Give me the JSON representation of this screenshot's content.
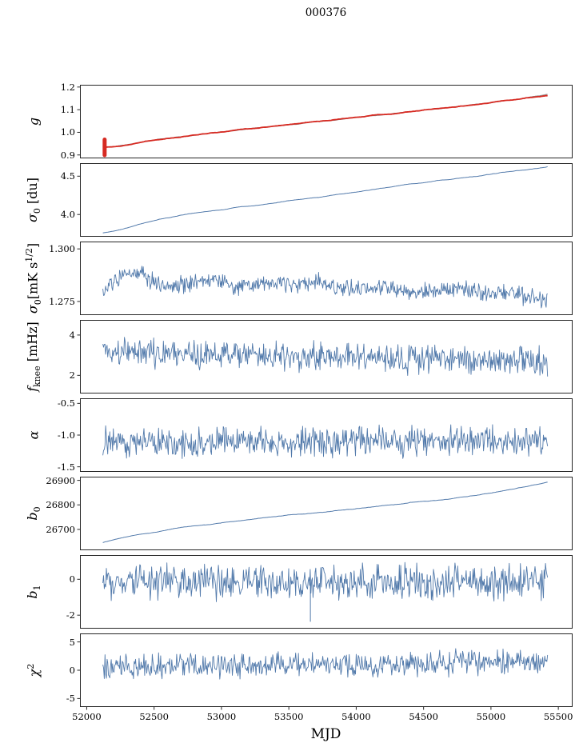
{
  "chart_data": {
    "type": "line",
    "title": "000376",
    "xlabel": "MJD",
    "xlim": [
      51950,
      55600
    ],
    "x_data_range": [
      52120,
      55420
    ],
    "frame_color": "#262626",
    "line_color_primary": "#527aab",
    "line_color_gain": "#d62a22",
    "line_color_reference": "#8c8c8c",
    "legend": "none",
    "grid": false,
    "x_ticks": [
      {
        "v": 52000,
        "label": "52000"
      },
      {
        "v": 52500,
        "label": "52500"
      },
      {
        "v": 53000,
        "label": "53000"
      },
      {
        "v": 53500,
        "label": "53500"
      },
      {
        "v": 54000,
        "label": "54000"
      },
      {
        "v": 54500,
        "label": "54500"
      },
      {
        "v": 55000,
        "label": "55000"
      },
      {
        "v": 55500,
        "label": "55500"
      }
    ],
    "panels": [
      {
        "id": "g",
        "ylabel": [
          {
            "t": "g",
            "italic": true
          }
        ],
        "ylim": [
          0.885,
          1.21
        ],
        "yticks": [
          {
            "v": 0.9,
            "label": "0.9"
          },
          {
            "v": 1.0,
            "label": "1.0"
          },
          {
            "v": 1.1,
            "label": "1.1"
          },
          {
            "v": 1.2,
            "label": "1.2"
          }
        ],
        "series": [
          {
            "name": "g-reference",
            "color": "#8c8c8c",
            "width": 1.1,
            "n": 420,
            "seed": 11,
            "noise": 0.0025,
            "smooth": 6,
            "trend": [
              [
                52120,
                0.933
              ],
              [
                52200,
                0.937
              ],
              [
                52300,
                0.946
              ],
              [
                52400,
                0.956
              ],
              [
                52500,
                0.966
              ],
              [
                52600,
                0.974
              ],
              [
                52700,
                0.981
              ],
              [
                52800,
                0.988
              ],
              [
                52900,
                0.995
              ],
              [
                53000,
                1.002
              ],
              [
                53150,
                1.012
              ],
              [
                53300,
                1.022
              ],
              [
                53450,
                1.031
              ],
              [
                53600,
                1.041
              ],
              [
                53800,
                1.053
              ],
              [
                54000,
                1.066
              ],
              [
                54200,
                1.079
              ],
              [
                54400,
                1.092
              ],
              [
                54600,
                1.104
              ],
              [
                54800,
                1.117
              ],
              [
                55000,
                1.131
              ],
              [
                55150,
                1.143
              ],
              [
                55300,
                1.157
              ],
              [
                55420,
                1.168
              ]
            ]
          },
          {
            "name": "g-gain",
            "color": "#d62a22",
            "width": 1.8,
            "n": 420,
            "seed": 12,
            "noise": 0.0025,
            "smooth": 6,
            "trend": [
              [
                52120,
                0.933
              ],
              [
                52200,
                0.937
              ],
              [
                52300,
                0.946
              ],
              [
                52400,
                0.956
              ],
              [
                52500,
                0.966
              ],
              [
                52600,
                0.974
              ],
              [
                52700,
                0.981
              ],
              [
                52800,
                0.988
              ],
              [
                52900,
                0.995
              ],
              [
                53000,
                1.002
              ],
              [
                53150,
                1.012
              ],
              [
                53300,
                1.022
              ],
              [
                53450,
                1.031
              ],
              [
                53600,
                1.041
              ],
              [
                53800,
                1.053
              ],
              [
                54000,
                1.066
              ],
              [
                54200,
                1.079
              ],
              [
                54400,
                1.092
              ],
              [
                54600,
                1.104
              ],
              [
                54800,
                1.117
              ],
              [
                55000,
                1.131
              ],
              [
                55150,
                1.143
              ],
              [
                55300,
                1.154
              ],
              [
                55420,
                1.162
              ]
            ]
          }
        ],
        "marks": [
          {
            "type": "vline",
            "x": 52133,
            "y0": 0.899,
            "y1": 0.968,
            "color": "#d62a22",
            "width": 5
          }
        ]
      },
      {
        "id": "sigma0-du",
        "ylabel": [
          {
            "t": "σ",
            "italic": true
          },
          {
            "t": "0",
            "sub": true
          },
          {
            "t": " [du]"
          }
        ],
        "ylim": [
          3.71,
          4.67
        ],
        "yticks": [
          {
            "v": 4.5,
            "label": "4.5"
          },
          {
            "v": 4.0,
            "label": "4.0"
          }
        ],
        "series": [
          {
            "name": "sigma0-du",
            "color": "#527aab",
            "width": 1,
            "n": 440,
            "seed": 21,
            "noise": 0.006,
            "smooth": 5,
            "trend": [
              [
                52120,
                3.76
              ],
              [
                52250,
                3.8
              ],
              [
                52400,
                3.88
              ],
              [
                52550,
                3.94
              ],
              [
                52700,
                3.99
              ],
              [
                52900,
                4.04
              ],
              [
                53100,
                4.09
              ],
              [
                53300,
                4.13
              ],
              [
                53500,
                4.18
              ],
              [
                53700,
                4.22
              ],
              [
                53900,
                4.27
              ],
              [
                54100,
                4.32
              ],
              [
                54300,
                4.37
              ],
              [
                54500,
                4.42
              ],
              [
                54700,
                4.46
              ],
              [
                54900,
                4.5
              ],
              [
                55100,
                4.55
              ],
              [
                55250,
                4.58
              ],
              [
                55420,
                4.62
              ]
            ]
          }
        ],
        "marks": []
      },
      {
        "id": "sigma0-mk",
        "ylabel": [
          {
            "t": "σ",
            "italic": true
          },
          {
            "t": "0",
            "sub": true
          },
          {
            "t": "[mK s"
          },
          {
            "t": "1/2",
            "sup": true
          },
          {
            "t": "]"
          }
        ],
        "ylim": [
          1.2685,
          1.3035
        ],
        "yticks": [
          {
            "v": 1.3,
            "label": "1.300"
          },
          {
            "v": 1.275,
            "label": "1.275"
          }
        ],
        "series": [
          {
            "name": "sigma0-mk",
            "color": "#527aab",
            "width": 0.9,
            "n": 640,
            "seed": 31,
            "noise": 0.005,
            "smooth": 0,
            "trend": [
              [
                52120,
                1.2785
              ],
              [
                52200,
                1.284
              ],
              [
                52300,
                1.2875
              ],
              [
                52400,
                1.2895
              ],
              [
                52500,
                1.284
              ],
              [
                52650,
                1.2825
              ],
              [
                52800,
                1.2845
              ],
              [
                52950,
                1.286
              ],
              [
                53100,
                1.282
              ],
              [
                53250,
                1.2835
              ],
              [
                53400,
                1.284
              ],
              [
                53550,
                1.2825
              ],
              [
                53700,
                1.2845
              ],
              [
                53850,
                1.281
              ],
              [
                54000,
                1.2805
              ],
              [
                54200,
                1.2815
              ],
              [
                54400,
                1.279
              ],
              [
                54600,
                1.2805
              ],
              [
                54800,
                1.281
              ],
              [
                55000,
                1.2785
              ],
              [
                55150,
                1.2795
              ],
              [
                55300,
                1.2765
              ],
              [
                55420,
                1.2755
              ]
            ]
          }
        ],
        "marks": []
      },
      {
        "id": "fknee",
        "ylabel": [
          {
            "t": "f",
            "italic": true
          },
          {
            "t": "knee",
            "sub": true
          },
          {
            "t": " [mHz]"
          }
        ],
        "ylim": [
          1.1,
          4.75
        ],
        "yticks": [
          {
            "v": 4,
            "label": "4"
          },
          {
            "v": 2,
            "label": "2"
          }
        ],
        "series": [
          {
            "name": "fknee",
            "color": "#527aab",
            "width": 0.9,
            "n": 640,
            "seed": 41,
            "noise": 0.85,
            "smooth": 0,
            "trend": [
              [
                52120,
                3.25
              ],
              [
                52400,
                3.15
              ],
              [
                52700,
                3.05
              ],
              [
                53000,
                3.0
              ],
              [
                53400,
                2.95
              ],
              [
                53800,
                2.9
              ],
              [
                54200,
                2.85
              ],
              [
                54600,
                2.8
              ],
              [
                55000,
                2.75
              ],
              [
                55420,
                2.7
              ]
            ]
          }
        ],
        "marks": []
      },
      {
        "id": "alpha",
        "ylabel": [
          {
            "t": "α",
            "italic": true
          }
        ],
        "ylim": [
          -1.58,
          -0.42
        ],
        "yticks": [
          {
            "v": -0.5,
            "label": "-0.5"
          },
          {
            "v": -1.0,
            "label": "-1.0"
          },
          {
            "v": -1.5,
            "label": "-1.5"
          }
        ],
        "series": [
          {
            "name": "alpha",
            "color": "#527aab",
            "width": 0.9,
            "n": 640,
            "seed": 51,
            "noise": 0.28,
            "smooth": 0,
            "trend": [
              [
                52120,
                -1.1
              ],
              [
                53000,
                -1.11
              ],
              [
                54000,
                -1.1
              ],
              [
                55420,
                -1.09
              ]
            ]
          }
        ],
        "marks": []
      },
      {
        "id": "b0",
        "ylabel": [
          {
            "t": "b",
            "italic": true
          },
          {
            "t": "0",
            "sub": true
          }
        ],
        "ylim": [
          26615,
          26915
        ],
        "yticks": [
          {
            "v": 26900,
            "label": "26900"
          },
          {
            "v": 26800,
            "label": "26800"
          },
          {
            "v": 26700,
            "label": "26700"
          }
        ],
        "series": [
          {
            "name": "b0",
            "color": "#527aab",
            "width": 1,
            "n": 440,
            "seed": 61,
            "noise": 2.5,
            "smooth": 8,
            "trend": [
              [
                52120,
                26645
              ],
              [
                52250,
                26664
              ],
              [
                52400,
                26680
              ],
              [
                52550,
                26694
              ],
              [
                52700,
                26706
              ],
              [
                52900,
                26720
              ],
              [
                53100,
                26733
              ],
              [
                53300,
                26746
              ],
              [
                53500,
                26758
              ],
              [
                53700,
                26768
              ],
              [
                53900,
                26778
              ],
              [
                54100,
                26790
              ],
              [
                54300,
                26802
              ],
              [
                54500,
                26814
              ],
              [
                54700,
                26826
              ],
              [
                54900,
                26840
              ],
              [
                55100,
                26858
              ],
              [
                55250,
                26872
              ],
              [
                55420,
                26893
              ]
            ]
          }
        ],
        "marks": []
      },
      {
        "id": "b1",
        "ylabel": [
          {
            "t": "b",
            "italic": true
          },
          {
            "t": "1",
            "sub": true
          }
        ],
        "ylim": [
          -2.75,
          1.35
        ],
        "yticks": [
          {
            "v": 0,
            "label": "0"
          },
          {
            "v": -2,
            "label": "-2"
          }
        ],
        "series": [
          {
            "name": "b1",
            "color": "#527aab",
            "width": 0.9,
            "n": 640,
            "seed": 71,
            "noise": 1.15,
            "smooth": 0,
            "trend": [
              [
                52120,
                -0.12
              ],
              [
                53000,
                -0.18
              ],
              [
                53800,
                -0.15
              ],
              [
                54600,
                -0.08
              ],
              [
                55420,
                -0.1
              ]
            ]
          }
        ],
        "marks": [
          {
            "type": "vline",
            "x": 53660,
            "y0": -2.35,
            "y1": -0.2,
            "color": "#527aab",
            "width": 1
          }
        ]
      },
      {
        "id": "chi2",
        "ylabel": [
          {
            "t": "χ",
            "italic": true
          },
          {
            "t": "2",
            "sup": true
          }
        ],
        "ylim": [
          -6.5,
          6.5
        ],
        "yticks": [
          {
            "v": 5,
            "label": "5"
          },
          {
            "v": 0,
            "label": "0"
          },
          {
            "v": -5,
            "label": "-5"
          }
        ],
        "series": [
          {
            "name": "chi2",
            "color": "#527aab",
            "width": 0.9,
            "n": 640,
            "seed": 81,
            "noise": 2.6,
            "smooth": 0,
            "trend": [
              [
                52120,
                0.6
              ],
              [
                52800,
                0.8
              ],
              [
                53600,
                0.9
              ],
              [
                54400,
                1.1
              ],
              [
                55000,
                1.4
              ],
              [
                55420,
                1.6
              ]
            ]
          }
        ],
        "marks": []
      }
    ]
  }
}
